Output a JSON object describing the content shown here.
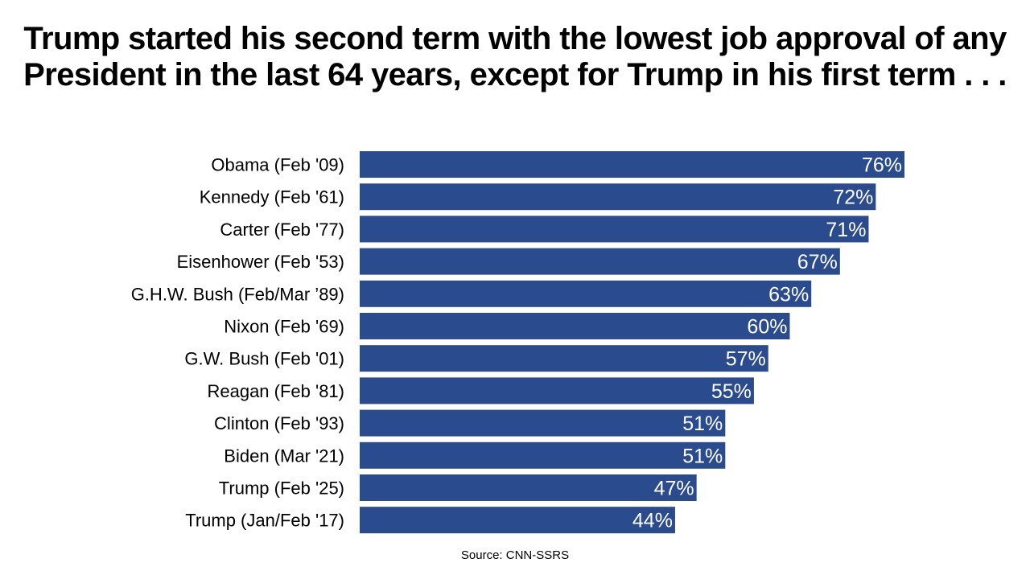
{
  "chart_data": {
    "type": "bar",
    "orientation": "horizontal",
    "title": "Trump started his second term with the lowest job approval of any President in the last 64 years, except for Trump in his first term . . .",
    "categories": [
      "Obama (Feb '09)",
      "Kennedy (Feb '61)",
      "Carter (Feb '77)",
      "Eisenhower (Feb '53)",
      "G.H.W. Bush (Feb/Mar ’89)",
      "Nixon (Feb '69)",
      "G.W. Bush (Feb '01)",
      "Reagan (Feb '81)",
      "Clinton (Feb '93)",
      "Biden (Mar '21)",
      "Trump (Feb '25)",
      "Trump (Jan/Feb '17)"
    ],
    "values": [
      76,
      72,
      71,
      67,
      63,
      60,
      57,
      55,
      51,
      51,
      47,
      44
    ],
    "value_labels": [
      "76%",
      "72%",
      "71%",
      "67%",
      "63%",
      "60%",
      "57%",
      "55%",
      "51%",
      "51%",
      "47%",
      "44%"
    ],
    "xlim": [
      0,
      76
    ],
    "grid": false,
    "legend": "none",
    "bar_color": "#2a4b8d",
    "value_label_color": "#ffffff",
    "source": "Source: CNN-SSRS"
  }
}
